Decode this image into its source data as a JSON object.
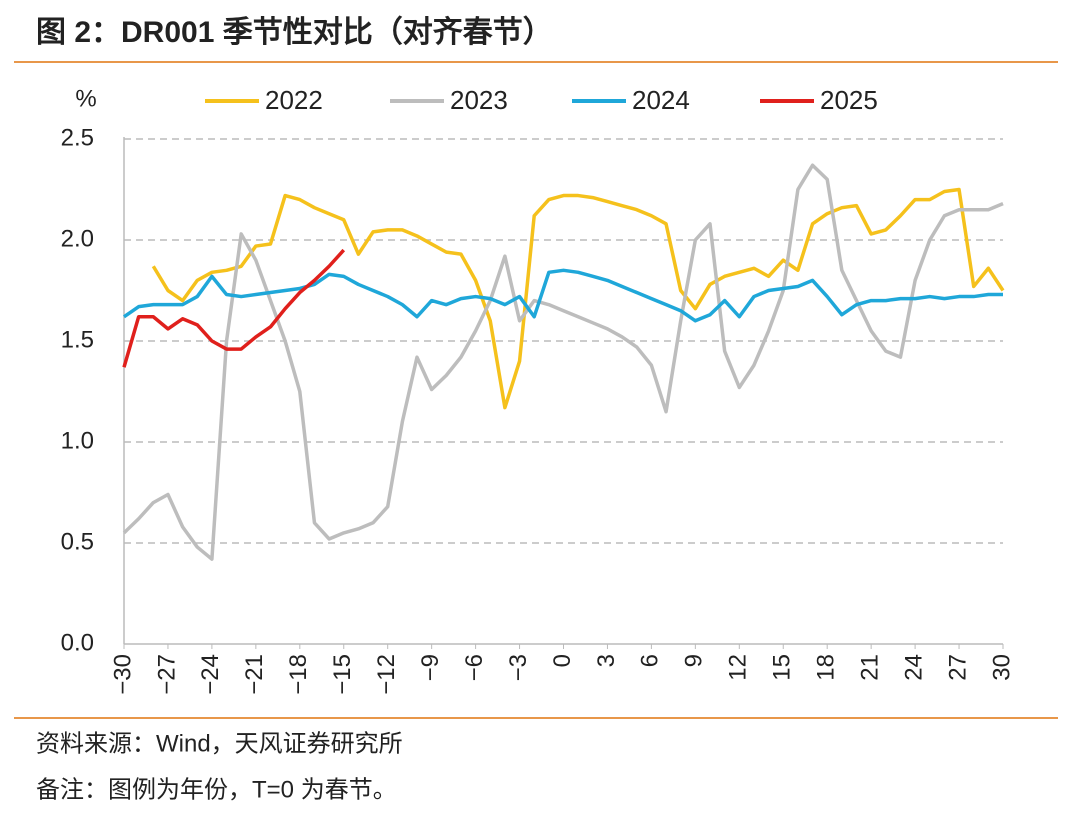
{
  "chart_data": {
    "type": "line",
    "title": "图 2：DR001 季节性对比（对齐春节）",
    "y_unit": "%",
    "source": "资料来源：Wind，天风证券研究所",
    "note": "备注：图例为年份，T=0 为春节。",
    "x": [
      -30,
      -29,
      -28,
      -27,
      -26,
      -25,
      -24,
      -23,
      -22,
      -21,
      -20,
      -19,
      -18,
      -17,
      -16,
      -15,
      -14,
      -13,
      -12,
      -11,
      -10,
      -9,
      -8,
      -7,
      -6,
      -5,
      -4,
      -3,
      -2,
      -1,
      0,
      1,
      2,
      3,
      4,
      5,
      6,
      7,
      8,
      9,
      10,
      11,
      12,
      13,
      14,
      15,
      16,
      17,
      18,
      19,
      20,
      21,
      22,
      23,
      24,
      25,
      26,
      27,
      28,
      29,
      30
    ],
    "series": [
      {
        "name": "2022",
        "color": "#f5c11c",
        "values": [
          null,
          null,
          1.87,
          1.75,
          1.7,
          1.8,
          1.84,
          1.85,
          1.87,
          1.97,
          1.98,
          2.22,
          2.2,
          2.16,
          2.13,
          2.1,
          1.93,
          2.04,
          2.05,
          2.05,
          2.02,
          1.98,
          1.94,
          1.93,
          1.8,
          1.6,
          1.17,
          1.4,
          2.12,
          2.2,
          2.22,
          2.22,
          2.21,
          2.19,
          2.17,
          2.15,
          2.12,
          2.08,
          1.75,
          1.66,
          1.78,
          1.82,
          1.84,
          1.86,
          1.82,
          1.9,
          1.85,
          2.08,
          2.13,
          2.16,
          2.17,
          2.03,
          2.05,
          2.12,
          2.2,
          2.2,
          2.24,
          2.25,
          1.77,
          1.86,
          1.75
        ]
      },
      {
        "name": "2023",
        "color": "#bdbdbd",
        "values": [
          0.55,
          0.62,
          0.7,
          0.74,
          0.58,
          0.48,
          0.42,
          1.5,
          2.03,
          1.9,
          1.7,
          1.5,
          1.25,
          0.6,
          0.52,
          0.55,
          0.57,
          0.6,
          0.68,
          1.1,
          1.42,
          1.26,
          1.33,
          1.42,
          1.55,
          1.7,
          1.92,
          1.6,
          1.7,
          1.68,
          1.65,
          1.62,
          1.59,
          1.56,
          1.52,
          1.47,
          1.38,
          1.15,
          1.6,
          2.0,
          2.08,
          1.45,
          1.27,
          1.38,
          1.55,
          1.75,
          2.25,
          2.37,
          2.3,
          1.85,
          1.7,
          1.55,
          1.45,
          1.42,
          1.8,
          2.0,
          2.12,
          2.15,
          2.15,
          2.15,
          2.18
        ]
      },
      {
        "name": "2024",
        "color": "#1fa7d9",
        "values": [
          1.62,
          1.67,
          1.68,
          1.68,
          1.68,
          1.72,
          1.82,
          1.73,
          1.72,
          1.73,
          1.74,
          1.75,
          1.76,
          1.78,
          1.83,
          1.82,
          1.78,
          1.75,
          1.72,
          1.68,
          1.62,
          1.7,
          1.68,
          1.71,
          1.72,
          1.71,
          1.68,
          1.72,
          1.62,
          1.84,
          1.85,
          1.84,
          1.82,
          1.8,
          1.77,
          1.74,
          1.71,
          1.68,
          1.65,
          1.6,
          1.63,
          1.7,
          1.62,
          1.72,
          1.75,
          1.76,
          1.77,
          1.8,
          1.72,
          1.63,
          1.68,
          1.7,
          1.7,
          1.71,
          1.71,
          1.72,
          1.71,
          1.72,
          1.72,
          1.73,
          1.73
        ]
      },
      {
        "name": "2025",
        "color": "#e0201c",
        "values": [
          1.37,
          1.62,
          1.62,
          1.56,
          1.61,
          1.58,
          1.5,
          1.46,
          1.46,
          1.52,
          1.57,
          1.66,
          1.74,
          1.8,
          1.87,
          1.95,
          null,
          null,
          null,
          null,
          null,
          null,
          null,
          null,
          null,
          null,
          null,
          null,
          null,
          null,
          null,
          null,
          null,
          null,
          null,
          null,
          null,
          null,
          null,
          null,
          null,
          null,
          null,
          null,
          null,
          null,
          null,
          null,
          null,
          null,
          null,
          null,
          null,
          null,
          null,
          null,
          null,
          null,
          null,
          null,
          null
        ]
      }
    ],
    "xlim": [
      -30,
      30
    ],
    "xticks": [
      {
        "value": -30,
        "label": "−30"
      },
      {
        "value": -27,
        "label": "−27"
      },
      {
        "value": -24,
        "label": "−24"
      },
      {
        "value": -21,
        "label": "−21"
      },
      {
        "value": -18,
        "label": "−18"
      },
      {
        "value": -15,
        "label": "−15"
      },
      {
        "value": -12,
        "label": "−12"
      },
      {
        "value": -9,
        "label": "−9"
      },
      {
        "value": -6,
        "label": "−6"
      },
      {
        "value": -3,
        "label": "−3"
      },
      0,
      3,
      6,
      9,
      12,
      15,
      18,
      21,
      24,
      27,
      30
    ],
    "ylim": [
      0,
      2.5
    ],
    "yticks": [
      {
        "value": 0,
        "label": "0.0"
      },
      0.5,
      {
        "value": 1,
        "label": "1.0"
      },
      1.5,
      {
        "value": 2,
        "label": "2.0"
      },
      2.5
    ],
    "grid": true
  }
}
